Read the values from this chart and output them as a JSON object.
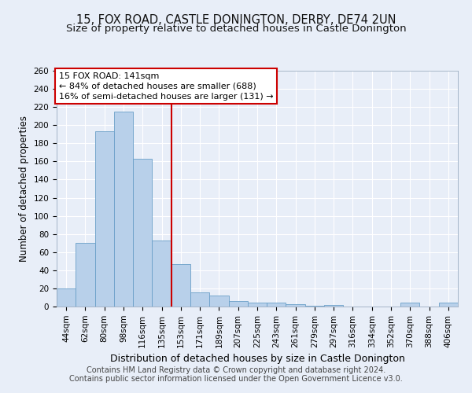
{
  "title_line1": "15, FOX ROAD, CASTLE DONINGTON, DERBY, DE74 2UN",
  "title_line2": "Size of property relative to detached houses in Castle Donington",
  "xlabel": "Distribution of detached houses by size in Castle Donington",
  "ylabel": "Number of detached properties",
  "categories": [
    "44sqm",
    "62sqm",
    "80sqm",
    "98sqm",
    "116sqm",
    "135sqm",
    "153sqm",
    "171sqm",
    "189sqm",
    "207sqm",
    "225sqm",
    "243sqm",
    "261sqm",
    "279sqm",
    "297sqm",
    "316sqm",
    "334sqm",
    "352sqm",
    "370sqm",
    "388sqm",
    "406sqm"
  ],
  "values": [
    20,
    70,
    193,
    215,
    163,
    73,
    47,
    16,
    12,
    6,
    4,
    4,
    3,
    1,
    2,
    0,
    0,
    0,
    4,
    0,
    4
  ],
  "bar_color": "#b8d0ea",
  "bar_edge_color": "#6a9fc8",
  "vline_x": 5.5,
  "vline_color": "#cc0000",
  "annotation_line1": "15 FOX ROAD: 141sqm",
  "annotation_line2": "← 84% of detached houses are smaller (688)",
  "annotation_line3": "16% of semi-detached houses are larger (131) →",
  "annotation_box_color": "white",
  "annotation_box_edge_color": "#cc0000",
  "ylim": [
    0,
    260
  ],
  "yticks": [
    0,
    20,
    40,
    60,
    80,
    100,
    120,
    140,
    160,
    180,
    200,
    220,
    240,
    260
  ],
  "footer_line1": "Contains HM Land Registry data © Crown copyright and database right 2024.",
  "footer_line2": "Contains public sector information licensed under the Open Government Licence v3.0.",
  "bg_color": "#e8eef8",
  "grid_color": "#ffffff",
  "title1_fontsize": 10.5,
  "title2_fontsize": 9.5,
  "ylabel_fontsize": 8.5,
  "xlabel_fontsize": 9,
  "tick_fontsize": 7.5,
  "annot_fontsize": 8,
  "footer_fontsize": 7
}
